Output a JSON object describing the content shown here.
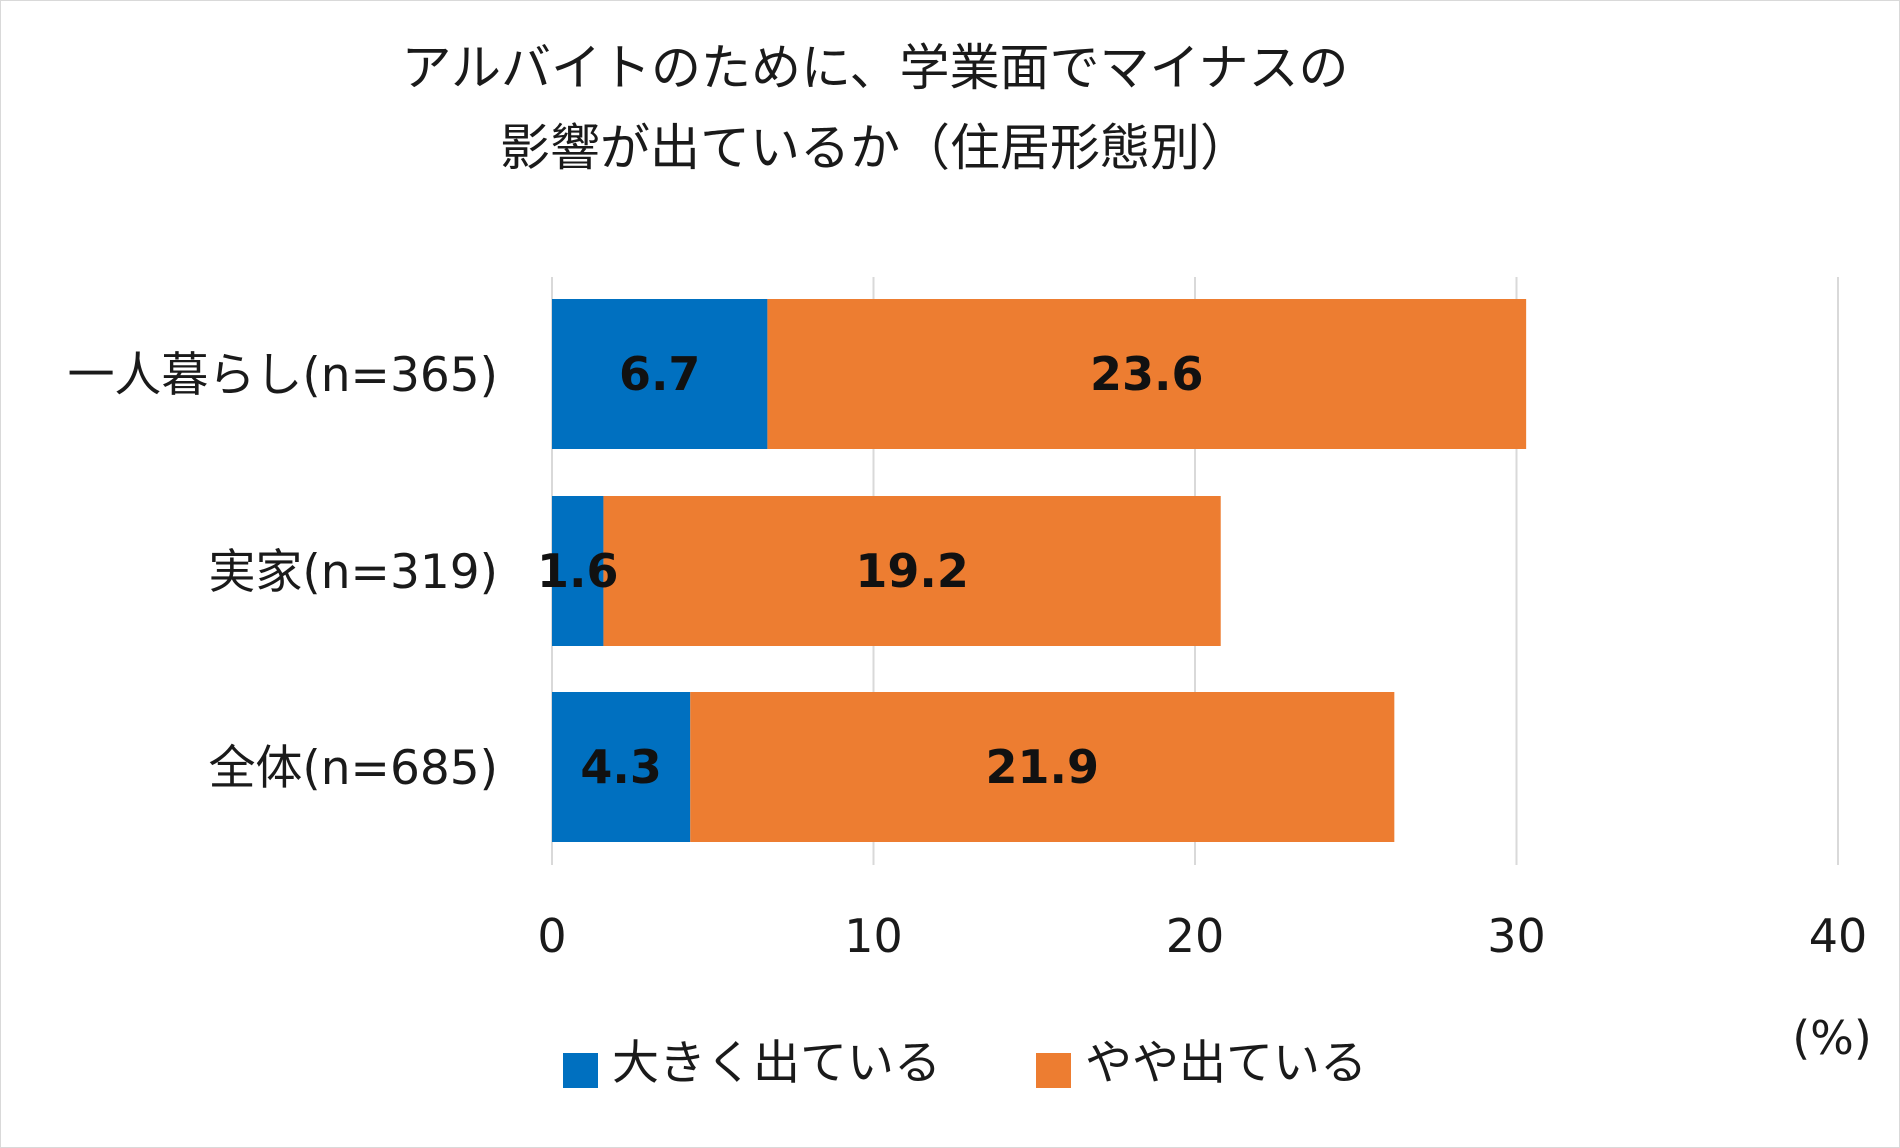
{
  "chart_data": {
    "type": "bar",
    "orientation": "horizontal",
    "stacked": true,
    "title_lines": [
      "アルバイトのために、学業面でマイナスの",
      "影響が出ているか（住居形態別）"
    ],
    "categories": [
      "一人暮らし(n=365)",
      "実家(n=319)",
      "全体(n=685)"
    ],
    "series": [
      {
        "name": "大きく出ている",
        "color": "#0070c0",
        "values": [
          6.7,
          1.6,
          4.3
        ]
      },
      {
        "name": "やや出ている",
        "color": "#ed7d31",
        "values": [
          23.6,
          19.2,
          21.9
        ]
      }
    ],
    "xlim": [
      0,
      40
    ],
    "xticks": [
      "0",
      "10",
      "20",
      "30",
      "40"
    ],
    "unit_label": "(%)",
    "grid": true,
    "legend_position": "bottom"
  }
}
